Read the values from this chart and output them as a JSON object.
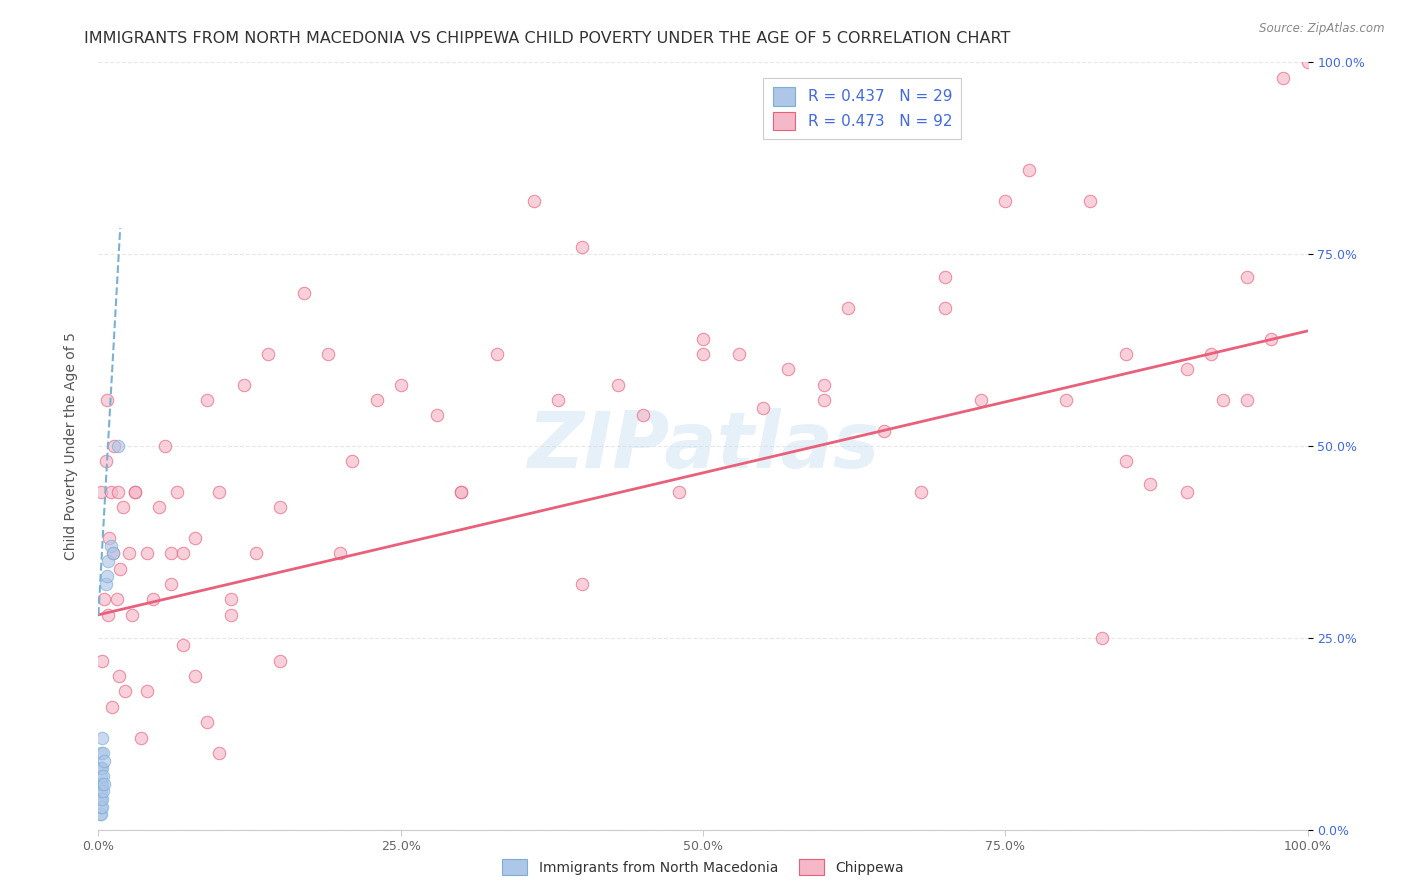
{
  "title": "IMMIGRANTS FROM NORTH MACEDONIA VS CHIPPEWA CHILD POVERTY UNDER THE AGE OF 5 CORRELATION CHART",
  "source": "Source: ZipAtlas.com",
  "ylabel": "Child Poverty Under the Age of 5",
  "right_yticks": [
    "0.0%",
    "25.0%",
    "50.0%",
    "75.0%",
    "100.0%"
  ],
  "xtick_labels": [
    "0.0%",
    "25.0%",
    "50.0%",
    "75.0%",
    "100.0%"
  ],
  "legend_label1": "Immigrants from North Macedonia",
  "legend_label2": "Chippewa",
  "r1": 0.437,
  "n1": 29,
  "r2": 0.473,
  "n2": 92,
  "watermark": "ZIPatlas",
  "blue_scatter_x": [
    0.001,
    0.001,
    0.001,
    0.001,
    0.001,
    0.002,
    0.002,
    0.002,
    0.002,
    0.002,
    0.002,
    0.002,
    0.002,
    0.003,
    0.003,
    0.003,
    0.003,
    0.003,
    0.004,
    0.004,
    0.004,
    0.005,
    0.005,
    0.006,
    0.007,
    0.008,
    0.01,
    0.012,
    0.016
  ],
  "blue_scatter_y": [
    0.02,
    0.04,
    0.05,
    0.06,
    0.08,
    0.02,
    0.03,
    0.04,
    0.05,
    0.06,
    0.07,
    0.08,
    0.1,
    0.03,
    0.04,
    0.06,
    0.08,
    0.12,
    0.05,
    0.07,
    0.1,
    0.06,
    0.09,
    0.32,
    0.33,
    0.35,
    0.37,
    0.36,
    0.5
  ],
  "pink_scatter_x": [
    0.002,
    0.003,
    0.005,
    0.006,
    0.007,
    0.008,
    0.009,
    0.01,
    0.011,
    0.012,
    0.013,
    0.015,
    0.016,
    0.017,
    0.018,
    0.02,
    0.022,
    0.025,
    0.028,
    0.03,
    0.035,
    0.04,
    0.045,
    0.05,
    0.055,
    0.06,
    0.065,
    0.07,
    0.08,
    0.09,
    0.1,
    0.11,
    0.12,
    0.13,
    0.15,
    0.17,
    0.19,
    0.21,
    0.23,
    0.25,
    0.28,
    0.3,
    0.33,
    0.36,
    0.38,
    0.4,
    0.43,
    0.45,
    0.48,
    0.5,
    0.53,
    0.55,
    0.57,
    0.6,
    0.62,
    0.65,
    0.68,
    0.7,
    0.73,
    0.75,
    0.77,
    0.8,
    0.82,
    0.83,
    0.85,
    0.87,
    0.9,
    0.92,
    0.93,
    0.95,
    0.97,
    0.98,
    1.0,
    0.85,
    0.9,
    0.95,
    0.5,
    0.6,
    0.7,
    0.3,
    0.2,
    0.4,
    0.1,
    0.15,
    0.08,
    0.06,
    0.04,
    0.03,
    0.07,
    0.09,
    0.11,
    0.14
  ],
  "pink_scatter_y": [
    0.44,
    0.22,
    0.3,
    0.48,
    0.56,
    0.28,
    0.38,
    0.44,
    0.16,
    0.36,
    0.5,
    0.3,
    0.44,
    0.2,
    0.34,
    0.42,
    0.18,
    0.36,
    0.28,
    0.44,
    0.12,
    0.36,
    0.3,
    0.42,
    0.5,
    0.36,
    0.44,
    0.24,
    0.2,
    0.56,
    0.44,
    0.3,
    0.58,
    0.36,
    0.42,
    0.7,
    0.62,
    0.48,
    0.56,
    0.58,
    0.54,
    0.44,
    0.62,
    0.82,
    0.56,
    0.76,
    0.58,
    0.54,
    0.44,
    0.64,
    0.62,
    0.55,
    0.6,
    0.58,
    0.68,
    0.52,
    0.44,
    0.68,
    0.56,
    0.82,
    0.86,
    0.56,
    0.82,
    0.25,
    0.62,
    0.45,
    0.6,
    0.62,
    0.56,
    0.72,
    0.64,
    0.98,
    1.0,
    0.48,
    0.44,
    0.56,
    0.62,
    0.56,
    0.72,
    0.44,
    0.36,
    0.32,
    0.1,
    0.22,
    0.38,
    0.32,
    0.18,
    0.44,
    0.36,
    0.14,
    0.28,
    0.62
  ],
  "blue_color": "#aec6e8",
  "pink_color": "#f4b8c8",
  "blue_line_color": "#7ab0d4",
  "pink_line_color": "#e8607a",
  "grid_color": "#e8e8e8",
  "background_color": "#ffffff",
  "title_fontsize": 11.5,
  "axis_label_fontsize": 10,
  "tick_fontsize": 9,
  "legend_r_color": "#4169e1",
  "scatter_size": 80,
  "scatter_alpha": 0.65,
  "pink_line_intercept": 0.28,
  "pink_line_slope": 0.37,
  "blue_line_intercept": 0.28,
  "blue_line_slope": 28.0
}
